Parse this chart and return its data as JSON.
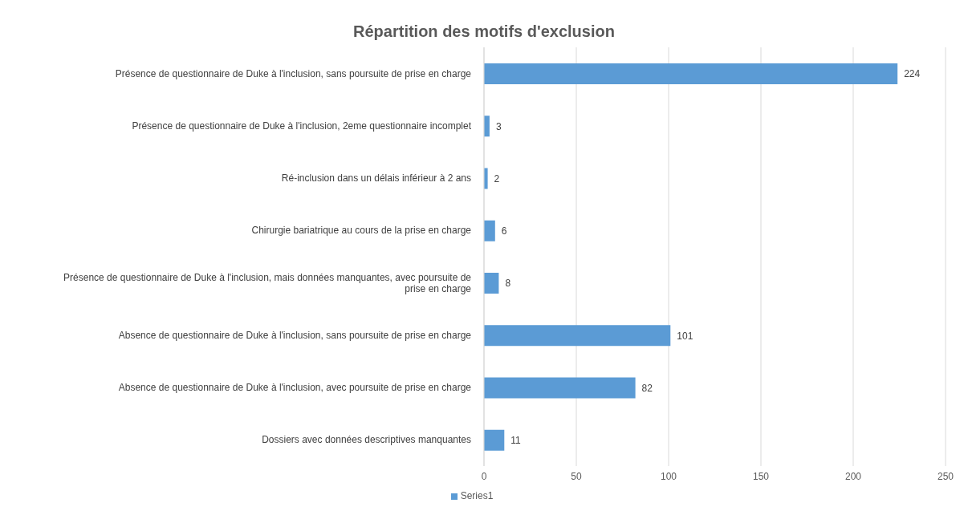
{
  "chart_data": {
    "type": "bar",
    "orientation": "horizontal",
    "title": "Répartition des motifs d'exclusion",
    "categories": [
      "Présence de questionnaire de Duke à l'inclusion, sans poursuite de prise en charge",
      "Présence de questionnaire de Duke à l'inclusion, 2eme questionnaire incomplet",
      "Ré-inclusion dans un délais  inférieur à 2 ans",
      "Chirurgie bariatrique au cours de la prise en charge",
      "Présence de questionnaire de Duke à l'inclusion, mais données manquantes, avec poursuite de prise en charge",
      "Absence de questionnaire de Duke à l'inclusion, sans poursuite de prise en charge",
      "Absence de questionnaire de Duke à l'inclusion, avec poursuite de prise en charge",
      "Dossiers avec données descriptives manquantes"
    ],
    "series": [
      {
        "name": "Series1",
        "color": "#5b9bd5",
        "values": [
          224,
          3,
          2,
          6,
          8,
          101,
          82,
          11
        ]
      }
    ],
    "xlim": [
      0,
      250
    ],
    "xticks": [
      0,
      50,
      100,
      150,
      200,
      250
    ],
    "grid": "x",
    "legend": "bottom",
    "data_labels": true
  }
}
